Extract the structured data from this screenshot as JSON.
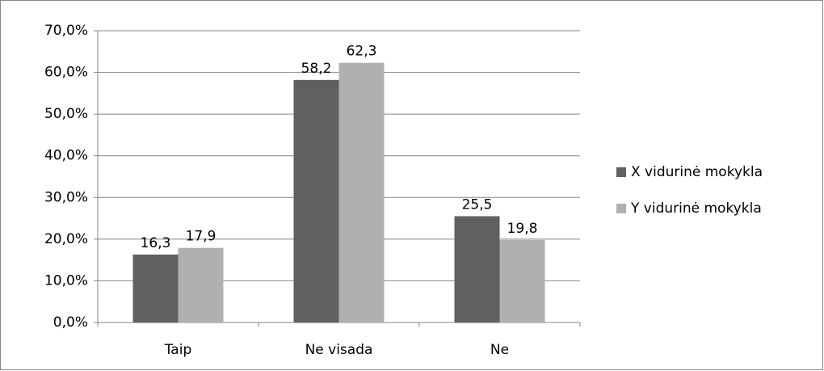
{
  "chart_data": {
    "type": "bar",
    "categories": [
      "Taip",
      "Ne visada",
      "Ne"
    ],
    "series": [
      {
        "name": "X vidurinė mokykla",
        "color": "#606060",
        "values": [
          16.3,
          58.2,
          25.5
        ],
        "value_labels": [
          "16,3",
          "58,2",
          "25,5"
        ]
      },
      {
        "name": "Y vidurinė mokykla",
        "color": "#b0b0b0",
        "values": [
          17.9,
          62.3,
          19.8
        ],
        "value_labels": [
          "17,9",
          "62,3",
          "19,8"
        ]
      }
    ],
    "ylim": [
      0,
      70
    ],
    "yticks": [
      {
        "value": 0,
        "label": "0,0%"
      },
      {
        "value": 10,
        "label": "10,0%"
      },
      {
        "value": 20,
        "label": "20,0%"
      },
      {
        "value": 30,
        "label": "30,0%"
      },
      {
        "value": 40,
        "label": "40,0%"
      },
      {
        "value": 50,
        "label": "50,0%"
      },
      {
        "value": 60,
        "label": "60,0%"
      },
      {
        "value": 70,
        "label": "70,0%"
      }
    ],
    "grid": true,
    "legend": "right"
  }
}
